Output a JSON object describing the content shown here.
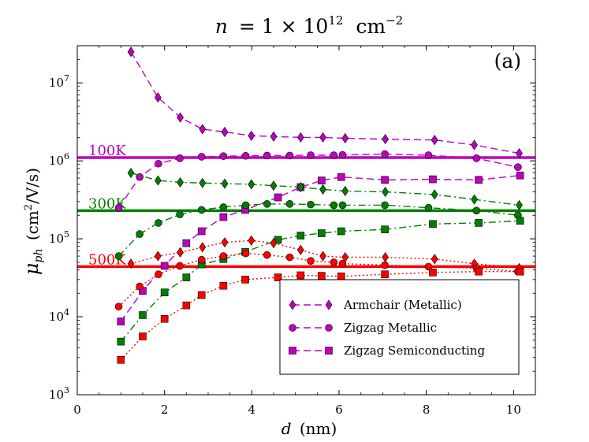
{
  "chart_data": {
    "type": "line",
    "title": "n = 1 × 10^12 cm^-2",
    "title_parts": {
      "lhs": "n",
      "eq": "= 1 × 10",
      "exp": "12",
      "unit": "cm",
      "unit_exp": "−2"
    },
    "panel_label": "(a)",
    "xlabel": "d (nm)",
    "xlabel_parts": {
      "var": "d",
      "unit": "(nm)"
    },
    "ylabel": "μ_ph (cm^2/V/s)",
    "ylabel_parts": {
      "var": "μ",
      "sub": "ph",
      "unit": "(cm",
      "unit_exp": "2",
      "unit_tail": "/V/s)"
    },
    "xlim": [
      0,
      10.5
    ],
    "ylim": [
      1000,
      30000000
    ],
    "yscale": "log",
    "grid": false,
    "legend_position": "lower-right",
    "x_ticks": [
      0,
      2,
      4,
      6,
      8,
      10
    ],
    "y_tick_exponents": [
      3,
      4,
      5,
      6,
      7
    ],
    "y_tick_base": "10",
    "temperature_colors": {
      "100K": "#bf00bf",
      "300K": "#007f00",
      "500K": "#ff0000"
    },
    "reference_lines": [
      {
        "label": "100K",
        "value": 1100000,
        "color": "#bf00bf"
      },
      {
        "label": "300K",
        "value": 230000,
        "color": "#007f00"
      },
      {
        "label": "500K",
        "value": 44000,
        "color": "#ff0000"
      }
    ],
    "legend": [
      {
        "label": "Armchair (Metallic)",
        "marker": "diamond"
      },
      {
        "label": "Zigzag Metallic",
        "marker": "circle"
      },
      {
        "label": "Zigzag Semiconducting",
        "marker": "square"
      }
    ],
    "series": [
      {
        "family": "Armchair (Metallic)",
        "marker": "diamond",
        "temperature": "100K",
        "style": "dashed",
        "x": [
          1.23,
          1.85,
          2.36,
          2.87,
          3.38,
          3.99,
          4.5,
          5.12,
          5.63,
          6.14,
          7.06,
          8.19,
          9.1,
          10.13
        ],
        "y": [
          25000000,
          6500000,
          3600000,
          2550000,
          2350000,
          2100000,
          2050000,
          2000000,
          2000000,
          1950000,
          1900000,
          1850000,
          1600000,
          1250000
        ]
      },
      {
        "family": "Zigzag Metallic",
        "marker": "circle",
        "temperature": "100K",
        "style": "dashed",
        "x": [
          0.95,
          1.43,
          1.86,
          2.35,
          2.85,
          3.35,
          3.86,
          4.35,
          4.87,
          5.35,
          5.88,
          6.08,
          7.05,
          8.05,
          9.15,
          10.1
        ],
        "y": [
          250000,
          620000,
          920000,
          1080000,
          1130000,
          1150000,
          1160000,
          1170000,
          1170000,
          1180000,
          1180000,
          1190000,
          1220000,
          1180000,
          1080000,
          830000
        ]
      },
      {
        "family": "Zigzag Semiconducting",
        "marker": "square",
        "temperature": "100K",
        "style": "dashed",
        "x": [
          1.0,
          1.5,
          2.0,
          2.5,
          2.85,
          3.35,
          3.85,
          4.6,
          5.12,
          5.6,
          6.05,
          7.05,
          8.15,
          9.2,
          10.15
        ],
        "y": [
          8700,
          21500,
          45000,
          88000,
          125000,
          190000,
          235000,
          340000,
          460000,
          560000,
          620000,
          570000,
          580000,
          570000,
          650000
        ]
      },
      {
        "family": "Armchair (Metallic)",
        "marker": "diamond",
        "temperature": "300K",
        "style": "dashdot",
        "x": [
          1.23,
          1.85,
          2.36,
          2.87,
          3.38,
          3.99,
          4.5,
          5.12,
          5.63,
          6.14,
          7.06,
          8.19,
          9.1,
          10.13
        ],
        "y": [
          700000,
          560000,
          530000,
          520000,
          510000,
          500000,
          480000,
          460000,
          430000,
          410000,
          400000,
          370000,
          320000,
          270000
        ]
      },
      {
        "family": "Zigzag Metallic",
        "marker": "circle",
        "temperature": "300K",
        "style": "dashdot",
        "x": [
          0.95,
          1.43,
          1.86,
          2.35,
          2.85,
          3.35,
          3.86,
          4.35,
          4.87,
          5.35,
          5.88,
          6.08,
          7.05,
          8.05,
          9.15,
          10.1
        ],
        "y": [
          60000,
          115000,
          160000,
          205000,
          235000,
          255000,
          270000,
          280000,
          280000,
          275000,
          270000,
          270000,
          270000,
          250000,
          230000,
          200000
        ]
      },
      {
        "family": "Zigzag Semiconducting",
        "marker": "square",
        "temperature": "300K",
        "style": "dashdot",
        "x": [
          1.0,
          1.5,
          2.0,
          2.5,
          2.85,
          3.35,
          3.85,
          4.6,
          5.12,
          5.6,
          6.05,
          7.05,
          8.15,
          9.2,
          10.15
        ],
        "y": [
          4800,
          10500,
          20500,
          32000,
          47000,
          55000,
          68000,
          97000,
          110000,
          118000,
          125000,
          132000,
          155000,
          160000,
          170000
        ]
      },
      {
        "family": "Armchair (Metallic)",
        "marker": "diamond",
        "temperature": "500K",
        "style": "dotted",
        "x": [
          1.23,
          1.85,
          2.36,
          2.87,
          3.38,
          3.99,
          4.5,
          5.12,
          5.63,
          6.14,
          7.06,
          8.19,
          9.1,
          10.13
        ],
        "y": [
          48000,
          60000,
          67000,
          78000,
          90000,
          95000,
          88000,
          72000,
          60000,
          58000,
          58000,
          55000,
          48000,
          42000
        ]
      },
      {
        "family": "Zigzag Metallic",
        "marker": "circle",
        "temperature": "500K",
        "style": "dotted",
        "x": [
          0.95,
          1.43,
          1.86,
          2.35,
          2.85,
          3.35,
          3.86,
          4.35,
          4.87,
          5.35,
          5.88,
          6.08,
          7.05,
          8.05,
          9.15,
          10.1
        ],
        "y": [
          13500,
          24500,
          35000,
          45000,
          54000,
          60000,
          65000,
          62000,
          58000,
          52000,
          50000,
          48000,
          46000,
          44000,
          42000,
          38000
        ]
      },
      {
        "family": "Zigzag Semiconducting",
        "marker": "square",
        "temperature": "500K",
        "style": "dotted",
        "x": [
          1.0,
          1.5,
          2.0,
          2.5,
          2.85,
          3.35,
          3.85,
          4.6,
          5.12,
          5.6,
          6.05,
          7.05,
          8.15,
          9.2,
          10.15
        ],
        "y": [
          2800,
          5600,
          9400,
          14000,
          19000,
          25000,
          30000,
          32000,
          34000,
          33500,
          33000,
          35000,
          37000,
          38000,
          38000
        ]
      }
    ]
  }
}
